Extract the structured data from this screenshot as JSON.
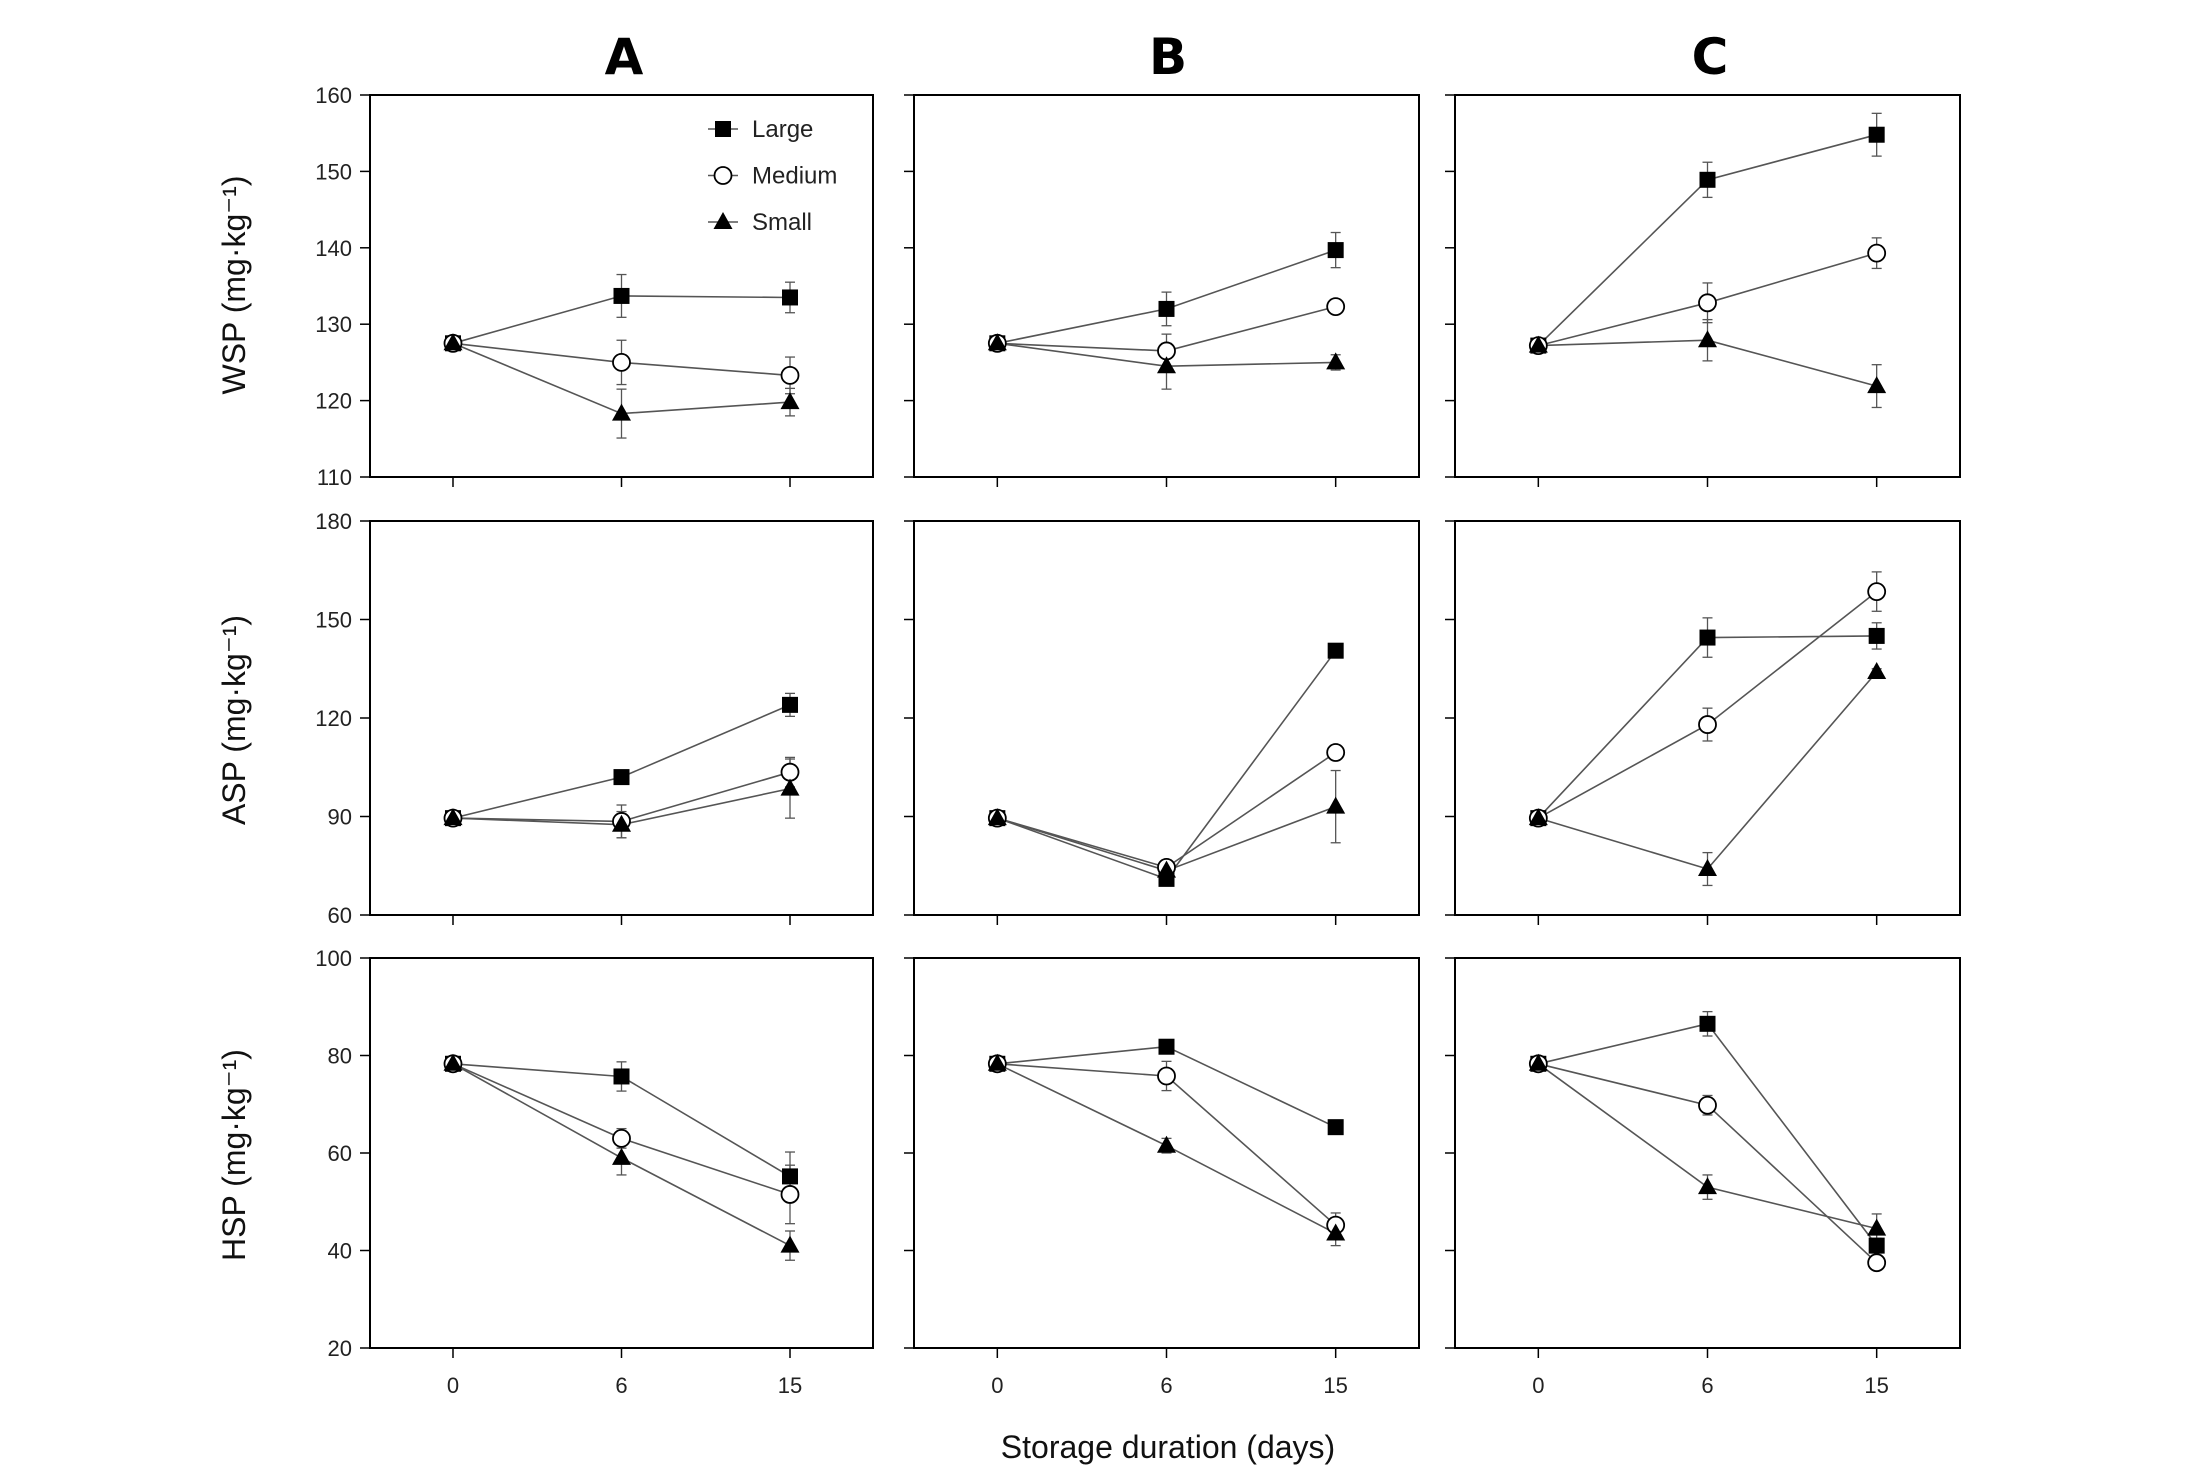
{
  "figure": {
    "column_titles": [
      "A",
      "B",
      "C"
    ],
    "row_ylabels": [
      "WSP (mg·kg⁻¹)",
      "ASP (mg·kg⁻¹)",
      "HSP (mg·kg⁻¹)"
    ],
    "xlabel": "Storage duration (days)",
    "x_tick_labels": [
      "0",
      "6",
      "15"
    ],
    "legend": [
      {
        "name": "Large",
        "marker": "filled-square"
      },
      {
        "name": "Medium",
        "marker": "open-circle"
      },
      {
        "name": "Small",
        "marker": "filled-triangle"
      }
    ],
    "colors": {
      "line": "#555555",
      "marker": "#000000",
      "frame": "#000000"
    }
  },
  "chart_data": [
    {
      "type": "line",
      "row": "WSP",
      "column": "A",
      "x": [
        0,
        6,
        15
      ],
      "ylim": [
        110,
        160
      ],
      "yticks": [
        110,
        120,
        130,
        140,
        150,
        160
      ],
      "series": [
        {
          "name": "Large",
          "values": [
            127.5,
            133.7,
            133.5
          ],
          "errors": [
            0.5,
            2.8,
            2.0
          ]
        },
        {
          "name": "Medium",
          "values": [
            127.5,
            125.0,
            123.3
          ],
          "errors": [
            0.5,
            2.9,
            2.4
          ]
        },
        {
          "name": "Small",
          "values": [
            127.5,
            118.3,
            119.8
          ],
          "errors": [
            0.5,
            3.2,
            1.8
          ]
        }
      ]
    },
    {
      "type": "line",
      "row": "WSP",
      "column": "B",
      "x": [
        0,
        6,
        15
      ],
      "ylim": [
        110,
        160
      ],
      "yticks": [
        110,
        120,
        130,
        140,
        150,
        160
      ],
      "series": [
        {
          "name": "Large",
          "values": [
            127.5,
            132.0,
            139.7
          ],
          "errors": [
            0.5,
            2.2,
            2.3
          ]
        },
        {
          "name": "Medium",
          "values": [
            127.5,
            126.5,
            132.3
          ],
          "errors": [
            0.5,
            2.2,
            0.8
          ]
        },
        {
          "name": "Small",
          "values": [
            127.5,
            124.5,
            125.0
          ],
          "errors": [
            0.5,
            3.0,
            1.0
          ]
        }
      ]
    },
    {
      "type": "line",
      "row": "WSP",
      "column": "C",
      "x": [
        0,
        6,
        15
      ],
      "ylim": [
        110,
        160
      ],
      "yticks": [
        110,
        120,
        130,
        140,
        150,
        160
      ],
      "series": [
        {
          "name": "Large",
          "values": [
            127.2,
            148.9,
            154.8
          ],
          "errors": [
            0.5,
            2.3,
            2.8
          ]
        },
        {
          "name": "Medium",
          "values": [
            127.2,
            132.8,
            139.3
          ],
          "errors": [
            0.5,
            2.6,
            2.0
          ]
        },
        {
          "name": "Small",
          "values": [
            127.2,
            127.9,
            121.9
          ],
          "errors": [
            0.5,
            2.7,
            2.8
          ]
        }
      ]
    },
    {
      "type": "line",
      "row": "ASP",
      "column": "A",
      "x": [
        0,
        6,
        15
      ],
      "ylim": [
        60,
        180
      ],
      "yticks": [
        60,
        90,
        120,
        150,
        180
      ],
      "series": [
        {
          "name": "Large",
          "values": [
            89.5,
            102.0,
            124.0
          ],
          "errors": [
            1.0,
            1.5,
            3.5
          ]
        },
        {
          "name": "Medium",
          "values": [
            89.5,
            88.5,
            103.5
          ],
          "errors": [
            1.0,
            5.0,
            4.5
          ]
        },
        {
          "name": "Small",
          "values": [
            89.5,
            87.5,
            98.5
          ],
          "errors": [
            1.0,
            4.0,
            9.0
          ]
        }
      ]
    },
    {
      "type": "line",
      "row": "ASP",
      "column": "B",
      "x": [
        0,
        6,
        15
      ],
      "ylim": [
        60,
        180
      ],
      "yticks": [
        60,
        90,
        120,
        150,
        180
      ],
      "series": [
        {
          "name": "Large",
          "values": [
            89.5,
            71.0,
            140.5
          ],
          "errors": [
            1.0,
            1.5,
            1.5
          ]
        },
        {
          "name": "Medium",
          "values": [
            89.5,
            74.5,
            109.5
          ],
          "errors": [
            1.0,
            2.0,
            2.0
          ]
        },
        {
          "name": "Small",
          "values": [
            89.5,
            73.5,
            93.0
          ],
          "errors": [
            1.0,
            2.0,
            11.0
          ]
        }
      ]
    },
    {
      "type": "line",
      "row": "ASP",
      "column": "C",
      "x": [
        0,
        6,
        15
      ],
      "ylim": [
        60,
        180
      ],
      "yticks": [
        60,
        90,
        120,
        150,
        180
      ],
      "series": [
        {
          "name": "Large",
          "values": [
            89.5,
            144.5,
            145.0
          ],
          "errors": [
            1.0,
            6.0,
            4.0
          ]
        },
        {
          "name": "Medium",
          "values": [
            89.5,
            118.0,
            158.5
          ],
          "errors": [
            1.0,
            5.0,
            6.0
          ]
        },
        {
          "name": "Small",
          "values": [
            89.5,
            74.0,
            134.0
          ],
          "errors": [
            1.0,
            5.0,
            1.0
          ]
        }
      ]
    },
    {
      "type": "line",
      "row": "HSP",
      "column": "A",
      "x": [
        0,
        6,
        15
      ],
      "ylim": [
        20,
        100
      ],
      "yticks": [
        20,
        40,
        60,
        80,
        100
      ],
      "series": [
        {
          "name": "Large",
          "values": [
            78.3,
            75.7,
            55.2
          ],
          "errors": [
            0.6,
            3.0,
            5.0
          ]
        },
        {
          "name": "Medium",
          "values": [
            78.3,
            63.0,
            51.5
          ],
          "errors": [
            0.6,
            2.0,
            6.0
          ]
        },
        {
          "name": "Small",
          "values": [
            78.3,
            59.0,
            41.0
          ],
          "errors": [
            0.6,
            3.5,
            3.0
          ]
        }
      ]
    },
    {
      "type": "line",
      "row": "HSP",
      "column": "B",
      "x": [
        0,
        6,
        15
      ],
      "ylim": [
        20,
        100
      ],
      "yticks": [
        20,
        40,
        60,
        80,
        100
      ],
      "series": [
        {
          "name": "Large",
          "values": [
            78.3,
            81.8,
            65.3
          ],
          "errors": [
            0.6,
            1.0,
            1.0
          ]
        },
        {
          "name": "Medium",
          "values": [
            78.3,
            75.8,
            45.2
          ],
          "errors": [
            0.6,
            3.0,
            2.5
          ]
        },
        {
          "name": "Small",
          "values": [
            78.3,
            61.5,
            43.5
          ],
          "errors": [
            0.6,
            1.5,
            2.5
          ]
        }
      ]
    },
    {
      "type": "line",
      "row": "HSP",
      "column": "C",
      "x": [
        0,
        6,
        15
      ],
      "ylim": [
        20,
        100
      ],
      "yticks": [
        20,
        40,
        60,
        80,
        100
      ],
      "series": [
        {
          "name": "Large",
          "values": [
            78.3,
            86.5,
            41.0
          ],
          "errors": [
            0.6,
            2.5,
            1.5
          ]
        },
        {
          "name": "Medium",
          "values": [
            78.3,
            69.8,
            37.5
          ],
          "errors": [
            0.6,
            2.0,
            1.5
          ]
        },
        {
          "name": "Small",
          "values": [
            78.3,
            53.0,
            44.5
          ],
          "errors": [
            0.6,
            2.5,
            3.0
          ]
        }
      ]
    }
  ]
}
